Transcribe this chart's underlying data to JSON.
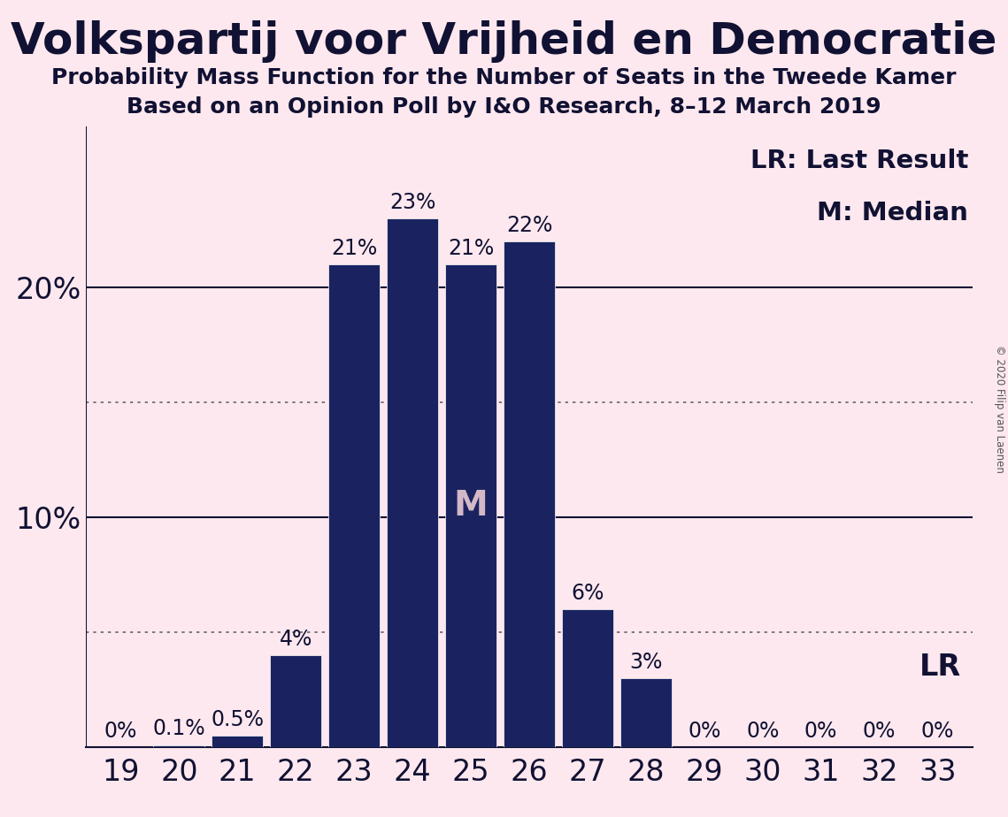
{
  "title": "Volkspartij voor Vrijheid en Democratie",
  "subtitle1": "Probability Mass Function for the Number of Seats in the Tweede Kamer",
  "subtitle2": "Based on an Opinion Poll by IéO Research, 8–12 March 2019",
  "subtitle2_display": "Based on an Opinion Poll by I&O Research, 8–12 March 2019",
  "copyright": "© 2020 Filip van Laenen",
  "categories": [
    19,
    20,
    21,
    22,
    23,
    24,
    25,
    26,
    27,
    28,
    29,
    30,
    31,
    32,
    33
  ],
  "values": [
    0.0,
    0.1,
    0.5,
    4.0,
    21.0,
    23.0,
    21.0,
    22.0,
    6.0,
    3.0,
    0.0,
    0.0,
    0.0,
    0.0,
    0.0
  ],
  "bar_color": "#1a2360",
  "background_color": "#fce8ee",
  "text_color": "#111133",
  "label_color_outside": "#111133",
  "median_seat": 25,
  "lr_seat": 33,
  "yticks": [
    10,
    20
  ],
  "extra_yticks": [
    5,
    15
  ],
  "ylim": [
    0,
    27
  ],
  "ylabel_fontsize": 24,
  "xlabel_fontsize": 24,
  "title_fontsize": 36,
  "subtitle_fontsize": 18,
  "bar_label_fontsize": 17,
  "legend_fontsize": 21,
  "median_label": "M",
  "lr_label": "LR"
}
